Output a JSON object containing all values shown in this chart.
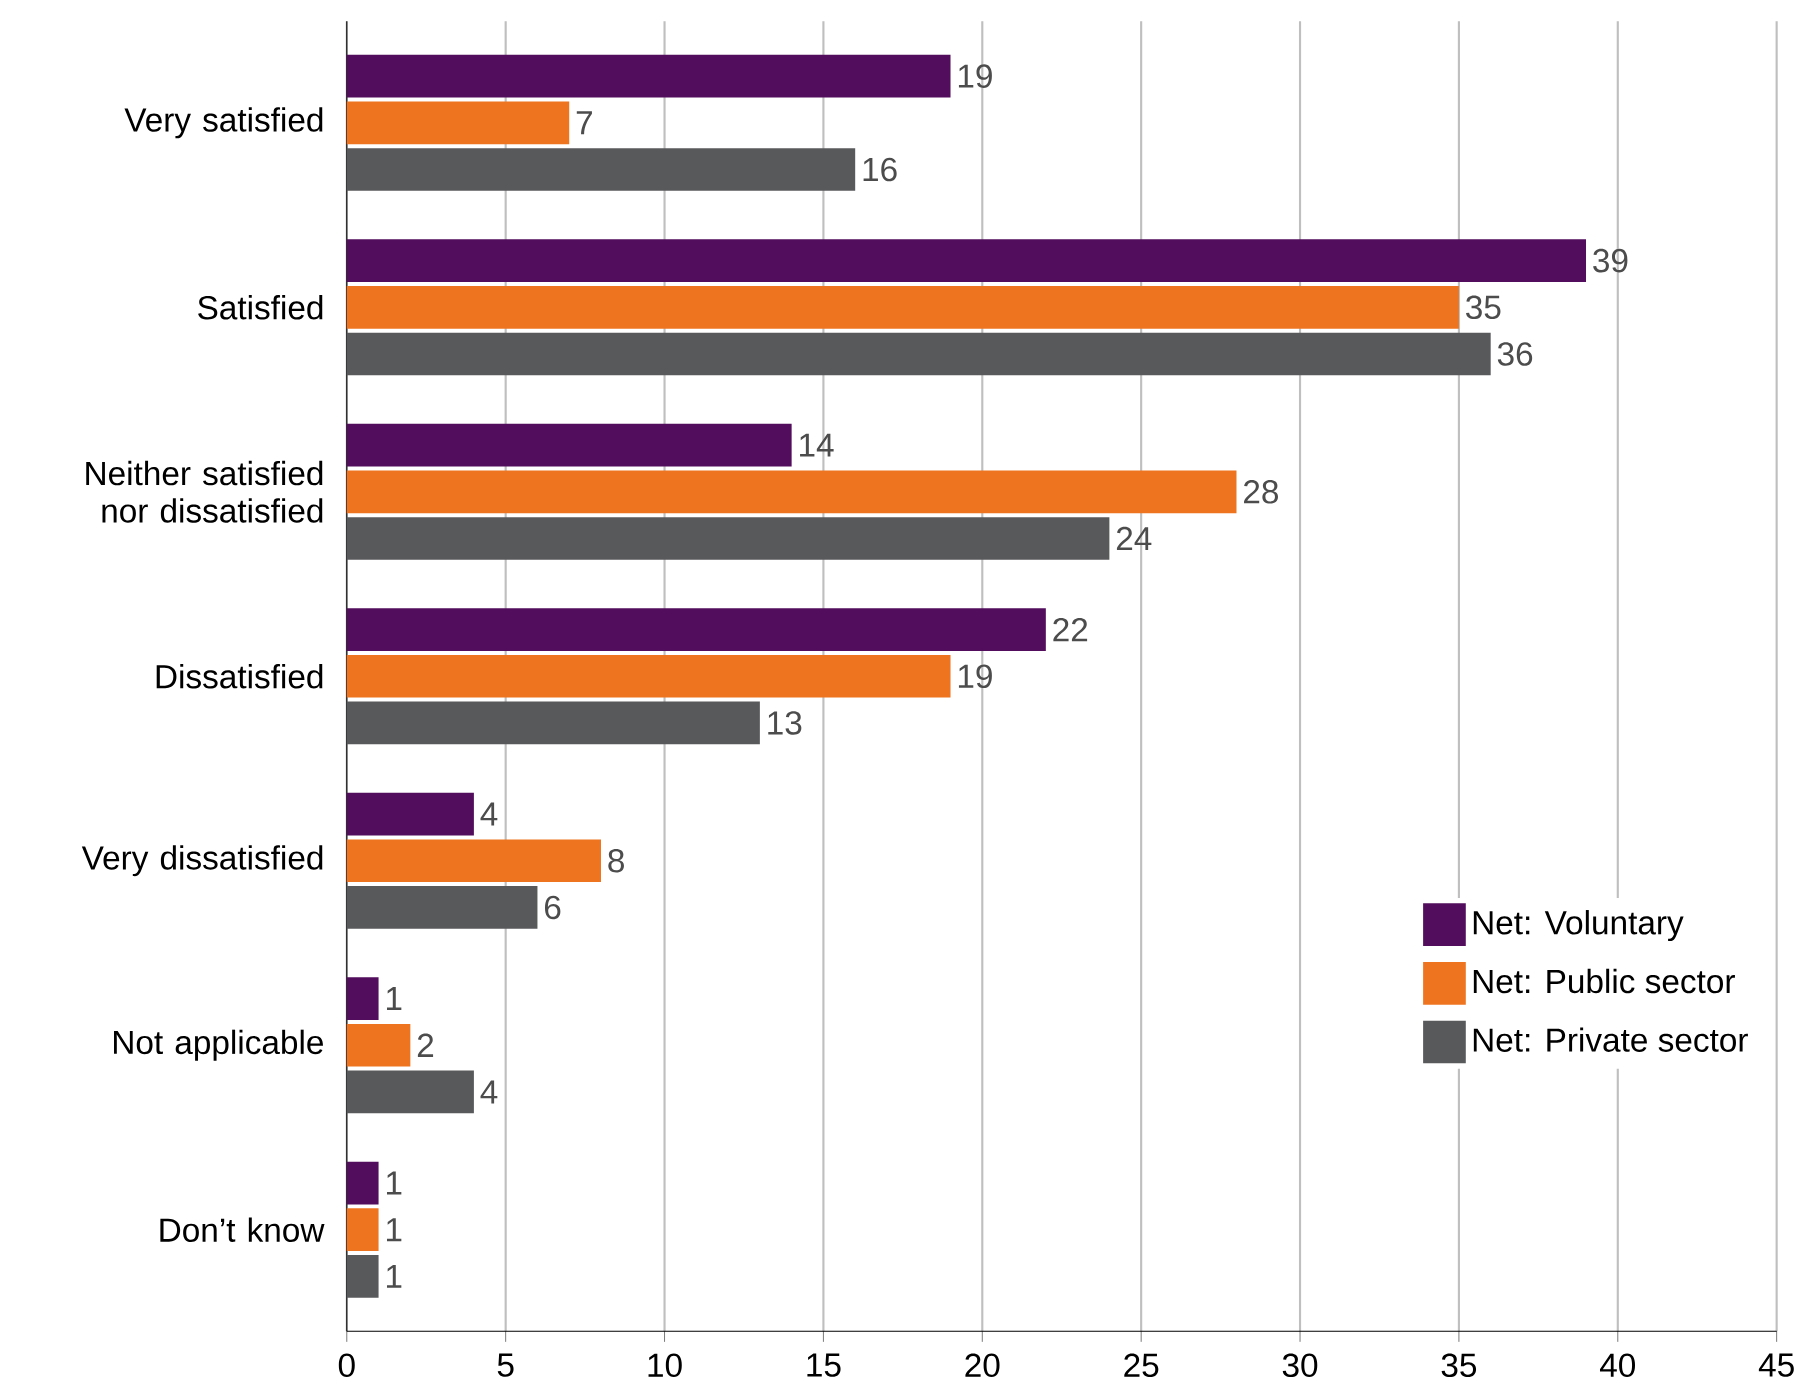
{
  "chart_data": {
    "type": "bar",
    "orientation": "horizontal",
    "categories": [
      "Very satisfied",
      "Satisfied",
      "Neither satisfied nor dissatisfied",
      "Dissatisfied",
      "Very dissatisfied",
      "Not applicable",
      "Don’t know"
    ],
    "series": [
      {
        "name": "Net: Voluntary",
        "color": "#520d5c",
        "values": [
          19,
          39,
          14,
          22,
          4,
          1,
          1
        ]
      },
      {
        "name": "Net: Public sector",
        "color": "#ee741f",
        "values": [
          7,
          35,
          28,
          19,
          8,
          2,
          1
        ]
      },
      {
        "name": "Net: Private sector",
        "color": "#58595b",
        "values": [
          16,
          36,
          24,
          13,
          6,
          4,
          1
        ]
      }
    ],
    "xlim": [
      0,
      45
    ],
    "xticks": [
      0,
      5,
      10,
      15,
      20,
      25,
      30,
      35,
      40,
      45
    ],
    "grid": "x",
    "legend": "bottom right",
    "data_labels": true
  }
}
